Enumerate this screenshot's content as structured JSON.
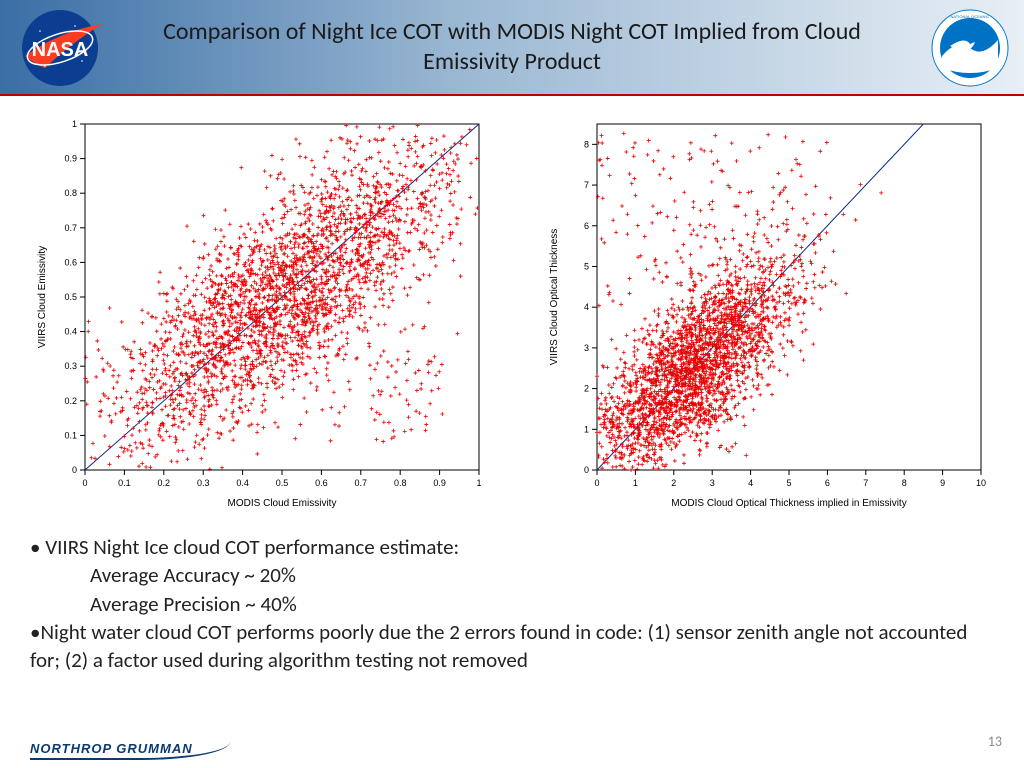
{
  "title": "Comparison of Night Ice COT with MODIS Night COT Implied from Cloud Emissivity Product",
  "page_number": "13",
  "footer_logo_text": "NORTHROP GRUMMAN",
  "bullets": {
    "b1": "• VIIRS Night Ice cloud COT performance estimate:",
    "b1a": "Average Accuracy ~ 20%",
    "b1b": "Average Precision ~ 40%",
    "b2": "•Night water cloud COT performs poorly due the 2 errors found in code: (1) sensor zenith angle not accounted for; (2) a factor used during algorithm testing not removed"
  },
  "chart_left": {
    "type": "scatter",
    "xlabel": "MODIS Cloud Emissivity",
    "ylabel": "VIIRS Cloud Emissivity",
    "xlim": [
      0,
      1
    ],
    "ylim": [
      0,
      1
    ],
    "xticks": [
      0,
      0.1,
      0.2,
      0.3,
      0.4,
      0.5,
      0.6,
      0.7,
      0.8,
      0.9,
      1
    ],
    "yticks": [
      0,
      0.1,
      0.2,
      0.3,
      0.4,
      0.5,
      0.6,
      0.7,
      0.8,
      0.9,
      1
    ],
    "xtick_labels": [
      "0",
      "0.1",
      "0.2",
      "0.3",
      "0.4",
      "0.5",
      "0.6",
      "0.7",
      "0.8",
      "0.9",
      "1"
    ],
    "ytick_labels": [
      "0",
      "0.1",
      "0.2",
      "0.3",
      "0.4",
      "0.5",
      "0.6",
      "0.7",
      "0.8",
      "0.9",
      "1"
    ],
    "label_fontsize": 10,
    "tick_fontsize": 9,
    "point_color": "#e60000",
    "point_marker": "+",
    "point_size": 4,
    "diagonal_line": {
      "from": [
        0,
        0
      ],
      "to": [
        1,
        1
      ],
      "color": "#0a2a8a",
      "width": 1
    },
    "background_color": "#ffffff",
    "border_color": "#000000",
    "n_points": 2800,
    "cloud_center": [
      0.5,
      0.5
    ],
    "cloud_spread": 0.22,
    "correlation": 0.75,
    "outlier_cluster": {
      "x_range": [
        0.72,
        0.92
      ],
      "y_range": [
        0.08,
        0.35
      ],
      "n": 60
    }
  },
  "chart_right": {
    "type": "scatter",
    "xlabel": "MODIS Cloud Optical Thickness implied in Emissivity",
    "ylabel": "VIIRS Cloud Optical Thickness",
    "xlim": [
      0,
      10
    ],
    "ylim": [
      0,
      8.5
    ],
    "xticks": [
      0,
      1,
      2,
      3,
      4,
      5,
      6,
      7,
      8,
      9,
      10
    ],
    "yticks": [
      0,
      1,
      2,
      3,
      4,
      5,
      6,
      7,
      8
    ],
    "xtick_labels": [
      "0",
      "1",
      "2",
      "3",
      "4",
      "5",
      "6",
      "7",
      "8",
      "9",
      "10"
    ],
    "ytick_labels": [
      "0",
      "1",
      "2",
      "3",
      "4",
      "5",
      "6",
      "7",
      "8"
    ],
    "label_fontsize": 10,
    "tick_fontsize": 9,
    "point_color": "#e60000",
    "point_marker": "+",
    "point_size": 4,
    "diagonal_line": {
      "from": [
        0,
        0
      ],
      "to": [
        8.5,
        8.5
      ],
      "color": "#0a2a8a",
      "width": 1
    },
    "background_color": "#ffffff",
    "border_color": "#000000",
    "n_points": 2600,
    "cloud_center": [
      2.5,
      2.5
    ],
    "cloud_spread": 1.3,
    "correlation": 0.7,
    "sparse_outliers": {
      "x_range": [
        0,
        6
      ],
      "y_range": [
        4,
        8.3
      ],
      "n": 180
    }
  },
  "colors": {
    "header_gradient_start": "#3a6ea5",
    "header_gradient_mid": "#9bb8d3",
    "header_gradient_end": "#e8eff5",
    "header_border": "#c00000",
    "nasa_blue": "#0b3d91",
    "nasa_red": "#fc3d21",
    "noaa_blue": "#0072c6"
  }
}
